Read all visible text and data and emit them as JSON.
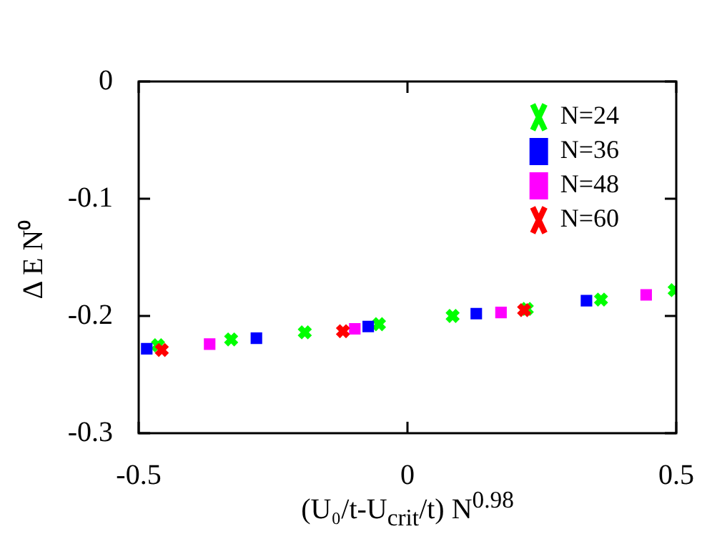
{
  "chart_data": {
    "type": "scatter",
    "xlabel": "(U₀/t-U$_{crit}$/t) N$^{0.98}$",
    "ylabel": "Δ E N⁰",
    "xlim": [
      -0.5,
      0.5
    ],
    "xticks": [
      -0.5,
      0,
      0.5
    ],
    "ylim": [
      -0.3,
      0
    ],
    "yticks": [
      0,
      -0.1,
      -0.2,
      -0.3
    ],
    "legend": "top right",
    "series": [
      {
        "name": "N=24",
        "color": "#00ff00",
        "marker": "cross",
        "x": [
          -0.464,
          -0.328,
          -0.191,
          -0.053,
          0.084,
          0.222,
          0.36,
          0.497
        ],
        "values": [
          -0.225,
          -0.22,
          -0.214,
          -0.207,
          -0.2,
          -0.194,
          -0.186,
          -0.178
        ]
      },
      {
        "name": "N=36",
        "color": "#0000ff",
        "marker": "square",
        "x": [
          -0.485,
          -0.281,
          -0.073,
          0.128,
          0.333
        ],
        "values": [
          -0.228,
          -0.219,
          -0.209,
          -0.198,
          -0.187
        ]
      },
      {
        "name": "N=48",
        "color": "#ff00ff",
        "marker": "square",
        "x": [
          -0.368,
          -0.098,
          0.174,
          0.444
        ],
        "values": [
          -0.224,
          -0.211,
          -0.197,
          -0.182
        ]
      },
      {
        "name": "N=60",
        "color": "#ff0000",
        "marker": "cross",
        "x": [
          -0.457,
          -0.12,
          0.217
        ],
        "values": [
          -0.229,
          -0.213,
          -0.195
        ]
      }
    ]
  }
}
